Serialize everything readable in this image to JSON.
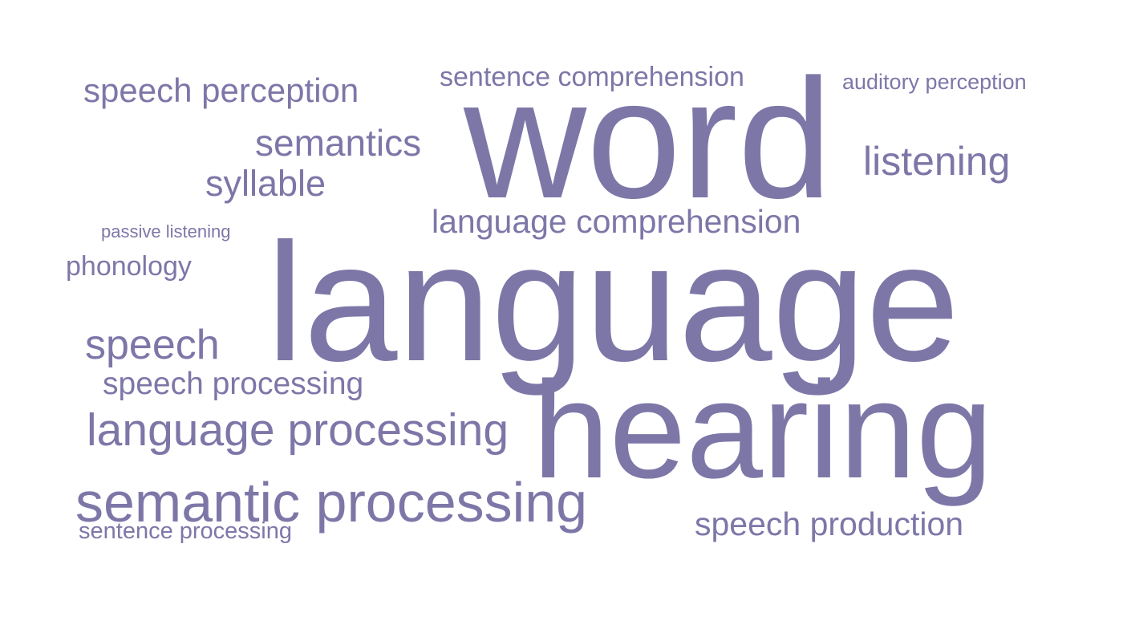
{
  "word_cloud": {
    "color": "#7d77a8",
    "words": [
      {
        "id": "word",
        "text": "word",
        "weight": 1.0
      },
      {
        "id": "language",
        "text": "language",
        "weight": 1.0
      },
      {
        "id": "hearing",
        "text": "hearing",
        "weight": 1.0
      },
      {
        "id": "semantic-processing",
        "text": "semantic processing",
        "weight": 0.45
      },
      {
        "id": "language-processing",
        "text": "language processing",
        "weight": 0.35
      },
      {
        "id": "language-comprehension",
        "text": "language comprehension",
        "weight": 0.25
      },
      {
        "id": "speech",
        "text": "speech",
        "weight": 0.35
      },
      {
        "id": "speech-production",
        "text": "speech production",
        "weight": 0.25
      },
      {
        "id": "listening",
        "text": "listening",
        "weight": 0.3
      },
      {
        "id": "semantics",
        "text": "semantics",
        "weight": 0.28
      },
      {
        "id": "syllable",
        "text": "syllable",
        "weight": 0.28
      },
      {
        "id": "speech-perception",
        "text": "speech perception",
        "weight": 0.25
      },
      {
        "id": "sentence-comprehension",
        "text": "sentence comprehension",
        "weight": 0.2
      },
      {
        "id": "speech-processing",
        "text": "speech processing",
        "weight": 0.2
      },
      {
        "id": "phonology",
        "text": "phonology",
        "weight": 0.18
      },
      {
        "id": "sentence-processing",
        "text": "sentence processing",
        "weight": 0.15
      },
      {
        "id": "auditory-perception",
        "text": "auditory perception",
        "weight": 0.12
      },
      {
        "id": "passive-listening",
        "text": "passive listening",
        "weight": 0.1
      }
    ]
  }
}
